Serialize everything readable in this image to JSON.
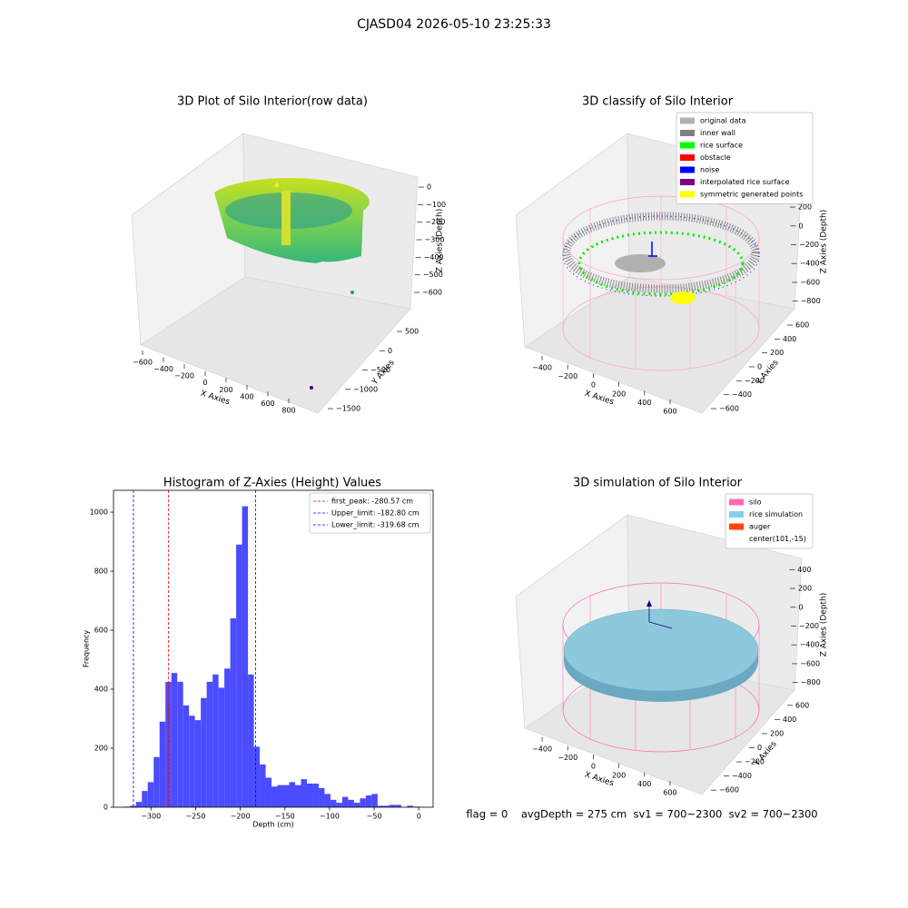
{
  "title": "CJASD04 2026-05-10 23:25:33",
  "footer": "flag = 0    avgDepth = 275 cm  sv1 = 700~2300  sv2 = 700~2300",
  "chart_data": [
    {
      "type": "scatter3d",
      "title": "3D Plot of Silo Interior(row data)",
      "xlabel": "X Axies",
      "ylabel": "Y Axies",
      "zlabel": "Z Axies (Depth)",
      "xlim": [
        -680,
        880
      ],
      "ylim": [
        -1600,
        600
      ],
      "zlim": [
        -650,
        50
      ],
      "xticks": [
        {
          "value": -600,
          "label": "−600"
        },
        {
          "value": -400,
          "label": "−400"
        },
        {
          "value": -200,
          "label": "−200"
        },
        0,
        200,
        400,
        600,
        800
      ],
      "yticks": [
        500,
        0,
        {
          "value": -500,
          "label": "−500"
        },
        {
          "value": -1000,
          "label": "−1000"
        },
        {
          "value": -1500,
          "label": "−1500"
        }
      ],
      "zticks": [
        0,
        {
          "value": -100,
          "label": "−100"
        },
        {
          "value": -200,
          "label": "−200"
        },
        {
          "value": -300,
          "label": "−300"
        },
        {
          "value": -400,
          "label": "−400"
        },
        {
          "value": -500,
          "label": "−500"
        },
        {
          "value": -600,
          "label": "−600"
        }
      ]
    },
    {
      "type": "scatter3d",
      "title": "3D classify of Silo Interior",
      "xlabel": "X Axies",
      "ylabel": "Y Axies",
      "zlabel": "Z Axies (Depth)",
      "xlim": [
        -500,
        700
      ],
      "ylim": [
        -700,
        700
      ],
      "zlim": [
        -900,
        500
      ],
      "xticks": [
        {
          "value": -400,
          "label": "−400"
        },
        {
          "value": -200,
          "label": "−200"
        },
        0,
        200,
        400,
        600
      ],
      "yticks": [
        {
          "value": -600,
          "label": "−600"
        },
        {
          "value": -400,
          "label": "−400"
        },
        {
          "value": -200,
          "label": "−200"
        },
        0,
        200,
        400,
        600
      ],
      "zticks": [
        400,
        200,
        0,
        {
          "value": -200,
          "label": "−200"
        },
        {
          "value": -400,
          "label": "−400"
        },
        {
          "value": -600,
          "label": "−600"
        },
        {
          "value": -800,
          "label": "−800"
        }
      ],
      "legend": [
        {
          "name": "original data",
          "color": "#b0b0b0"
        },
        {
          "name": "inner wall",
          "color": "#808080"
        },
        {
          "name": "rice surface",
          "color": "#00ff00"
        },
        {
          "name": "obstacle",
          "color": "#ff0000"
        },
        {
          "name": "noise",
          "color": "#0000ff"
        },
        {
          "name": "interpolated rice surface",
          "color": "#800080"
        },
        {
          "name": "symmetric generated points",
          "color": "#ffff00"
        }
      ]
    },
    {
      "type": "histogram",
      "title": "Histogram of Z-Axies (Height) Values",
      "xlabel": "Depth (cm)",
      "ylabel": "Frequency",
      "color": "#4b4bff",
      "bins": [
        -330,
        -323.4,
        -316.8,
        -310.2,
        -303.6,
        -297,
        -290.4,
        -283.8,
        -277.2,
        -270.6,
        -264,
        -257.4,
        -250.8,
        -244.2,
        -237.6,
        -231,
        -224.4,
        -217.8,
        -211.2,
        -204.6,
        -198,
        -191.4,
        -184.8,
        -178.2,
        -171.6,
        -165,
        -158.4,
        -151.8,
        -145.2,
        -138.6,
        -132,
        -125.4,
        -118.8,
        -112.2,
        -105.6,
        -99,
        -92.4,
        -85.8,
        -79.2,
        -72.6,
        -66,
        -59.4,
        -52.8,
        -46.2,
        -39.6,
        -33,
        -26.4,
        -19.8,
        -13.2,
        -6.6,
        0
      ],
      "counts": [
        2,
        5,
        18,
        55,
        85,
        170,
        290,
        425,
        455,
        425,
        345,
        310,
        295,
        370,
        425,
        450,
        405,
        470,
        640,
        890,
        1020,
        450,
        205,
        145,
        100,
        70,
        75,
        75,
        85,
        75,
        95,
        80,
        80,
        65,
        45,
        25,
        15,
        35,
        25,
        15,
        30,
        40,
        45,
        5,
        5,
        8,
        8,
        0,
        5,
        2
      ],
      "xlim": [
        -342,
        16
      ],
      "ylim": [
        0,
        1074
      ],
      "xticks": [
        {
          "value": -300,
          "label": "−300"
        },
        {
          "value": -250,
          "label": "−250"
        },
        {
          "value": -200,
          "label": "−200"
        },
        {
          "value": -150,
          "label": "−150"
        },
        {
          "value": -100,
          "label": "−100"
        },
        {
          "value": -50,
          "label": "−50"
        },
        0
      ],
      "yticks": [
        0,
        200,
        400,
        600,
        800,
        1000
      ],
      "lines": [
        {
          "name": "first_peak: -280.57 cm",
          "value": -280.57,
          "color": "#ff0000"
        },
        {
          "name": "Upper_limit: -182.80 cm",
          "value": -182.8,
          "color": "#0000ff"
        },
        {
          "name": "Lower_limit: -319.68 cm",
          "value": -319.68,
          "color": "#0000ff"
        }
      ],
      "legend_position": "upper right"
    },
    {
      "type": "scatter3d",
      "title": "3D simulation of Silo Interior",
      "xlabel": "X Axies",
      "ylabel": "Y Axies",
      "zlabel": "Z Axies (Depth)",
      "xlim": [
        -500,
        700
      ],
      "ylim": [
        -700,
        700
      ],
      "zlim": [
        -900,
        500
      ],
      "xticks": [
        {
          "value": -400,
          "label": "−400"
        },
        {
          "value": -200,
          "label": "−200"
        },
        0,
        200,
        400,
        600
      ],
      "yticks": [
        {
          "value": -600,
          "label": "−600"
        },
        {
          "value": -400,
          "label": "−400"
        },
        {
          "value": -200,
          "label": "−200"
        },
        0,
        200,
        400,
        600
      ],
      "zticks": [
        400,
        200,
        0,
        {
          "value": -200,
          "label": "−200"
        },
        {
          "value": -400,
          "label": "−400"
        },
        {
          "value": -600,
          "label": "−600"
        },
        {
          "value": -800,
          "label": "−800"
        }
      ],
      "legend": [
        {
          "name": "silo",
          "color": "#ff69b4"
        },
        {
          "name": "rice simulation",
          "color": "#87ceeb"
        },
        {
          "name": "auger",
          "color": "#ff4500"
        },
        {
          "name": "center(101,-15)"
        }
      ]
    }
  ]
}
